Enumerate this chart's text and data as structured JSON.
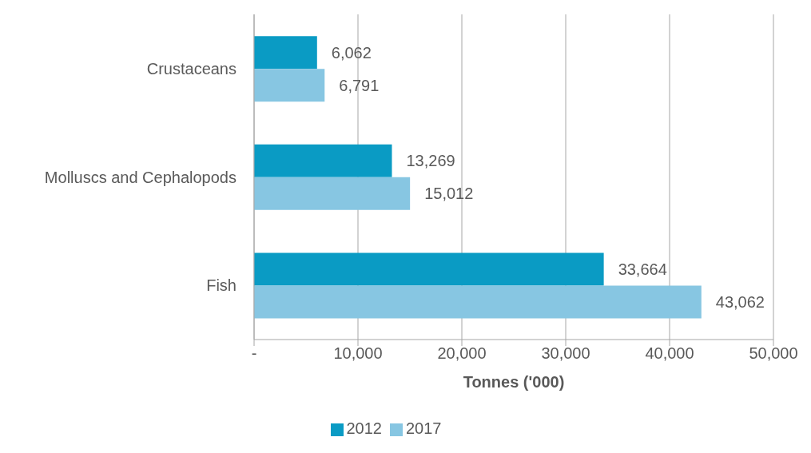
{
  "chart_data": {
    "type": "bar",
    "orientation": "horizontal",
    "categories": [
      "Crustaceans",
      "Molluscs and Cephalopods",
      "Fish"
    ],
    "series": [
      {
        "name": "2012",
        "color": "#0a9bc4",
        "values": [
          6062,
          13269,
          33664
        ],
        "value_labels": [
          "6,062",
          "13,269",
          "33,664"
        ]
      },
      {
        "name": "2017",
        "color": "#87c6e2",
        "values": [
          6791,
          15012,
          43062
        ],
        "value_labels": [
          "6,791",
          "15,012",
          "43,062"
        ]
      }
    ],
    "xlabel": "Tonnes ('000)",
    "xlim": [
      0,
      50000
    ],
    "xticks": [
      {
        "value": 0,
        "label": "-"
      },
      {
        "value": 10000,
        "label": "10,000"
      },
      {
        "value": 20000,
        "label": "20,000"
      },
      {
        "value": 30000,
        "label": "30,000"
      },
      {
        "value": 40000,
        "label": "40,000"
      },
      {
        "value": 50000,
        "label": "50,000"
      }
    ],
    "grid": "x",
    "legend": "bottom"
  }
}
